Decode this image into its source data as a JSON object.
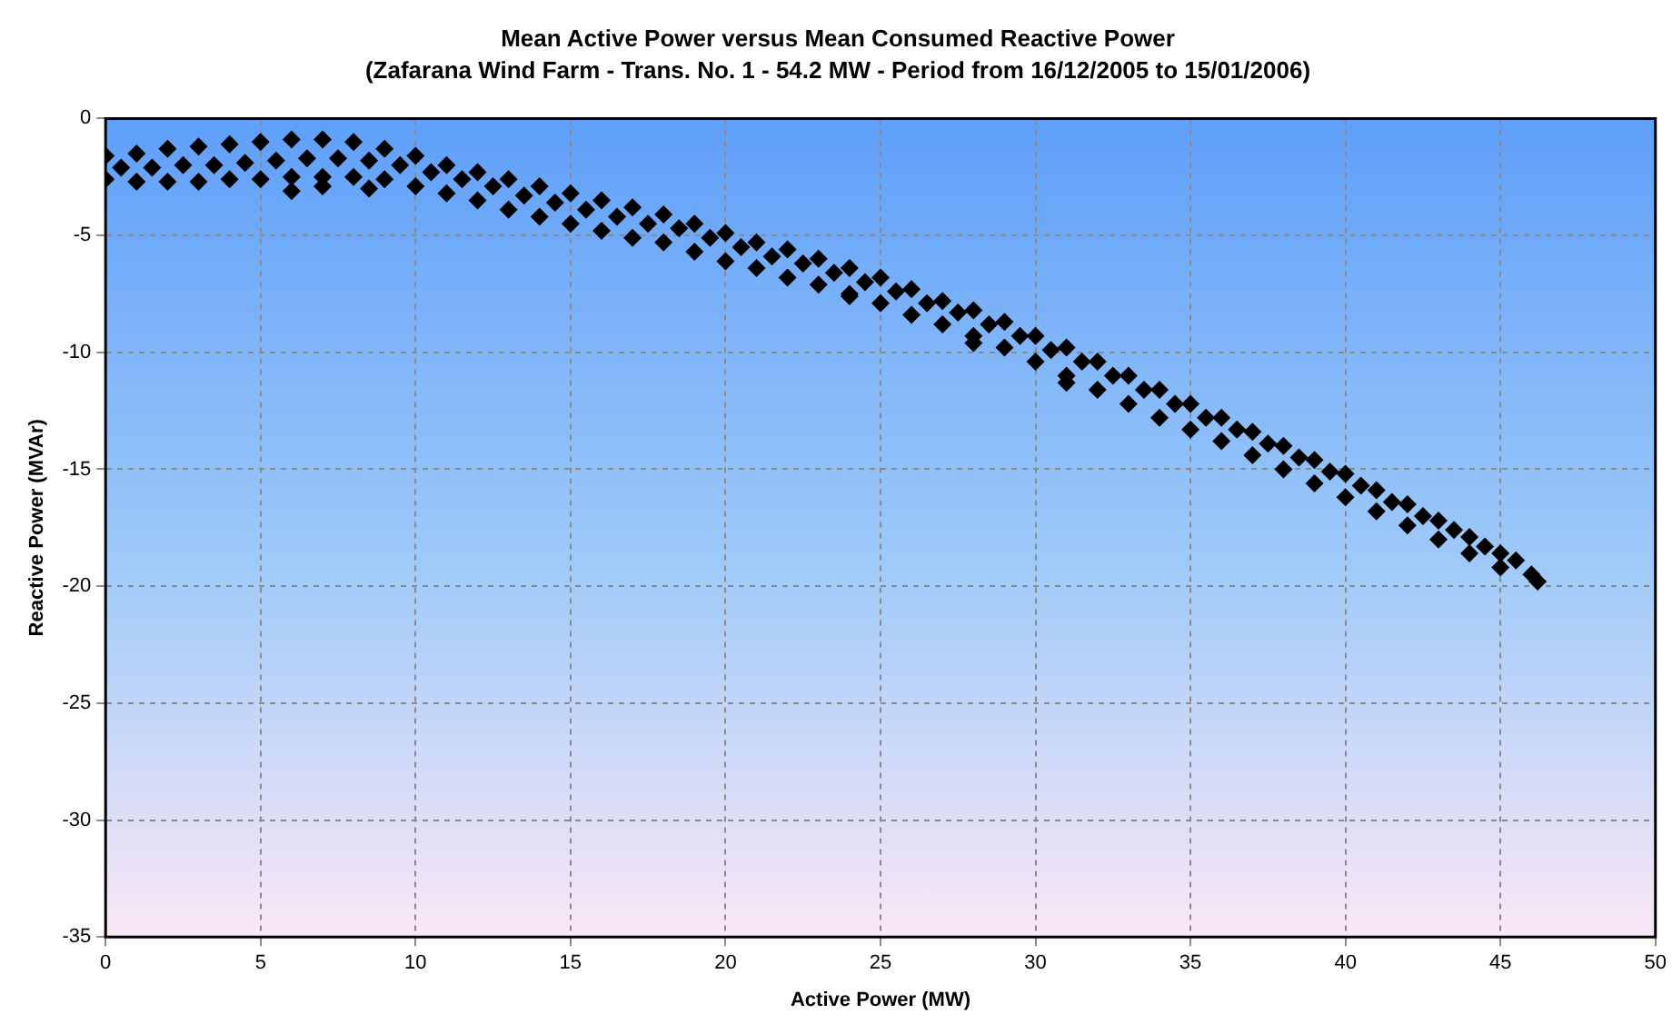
{
  "chart_data": {
    "type": "scatter",
    "title": "Mean Active Power versus Mean Consumed Reactive Power",
    "subtitle": "(Zafarana Wind Farm - Trans. No. 1 - 54.2 MW - Period from 16/12/2005 to 15/01/2006)",
    "xlabel": "Active Power (MW)",
    "ylabel": "Reactive Power (MVAr)",
    "xlim": [
      0,
      50
    ],
    "xticks": [
      0,
      5,
      10,
      15,
      20,
      25,
      30,
      35,
      40,
      45,
      50
    ],
    "ylim": [
      -35,
      0
    ],
    "yticks": [
      -35,
      -30,
      -25,
      -20,
      -15,
      -10,
      -5,
      0
    ],
    "grid": true,
    "legend": false,
    "marker": "diamond",
    "series": [
      {
        "color": "#000000",
        "x": [
          0,
          1,
          2,
          3,
          4,
          5,
          6,
          7,
          8,
          9,
          10,
          11,
          12,
          13,
          14,
          15,
          16,
          17,
          18,
          19,
          20,
          21,
          22,
          23,
          24,
          25,
          26,
          27,
          28,
          29,
          30,
          31,
          32,
          33,
          34,
          35,
          36,
          37,
          38,
          39,
          40,
          41,
          42,
          43,
          44,
          45,
          46,
          0,
          1,
          2,
          3,
          4,
          5,
          6,
          7,
          8,
          9,
          10,
          11,
          12,
          13,
          14,
          15,
          16,
          17,
          18,
          19,
          20,
          21,
          22,
          23,
          24,
          25,
          26,
          27,
          28,
          29,
          30,
          31,
          32,
          33,
          34,
          35,
          36,
          37,
          38,
          39,
          40,
          41,
          42,
          43,
          44,
          45,
          46.2,
          6,
          7,
          8.5,
          24,
          28,
          31,
          0.5,
          1.5,
          2.5,
          3.5,
          4.5,
          5.5,
          6.5,
          7.5,
          8.5,
          9.5,
          10.5,
          11.5,
          12.5,
          13.5,
          14.5,
          15.5,
          16.5,
          17.5,
          18.5,
          19.5,
          20.5,
          21.5,
          22.5,
          23.5,
          24.5,
          25.5,
          26.5,
          27.5,
          28.5,
          29.5,
          30.5,
          31.5,
          32.5,
          33.5,
          34.5,
          35.5,
          36.5,
          37.5,
          38.5,
          39.5,
          40.5,
          41.5,
          42.5,
          43.5,
          44.5,
          45.5
        ],
        "values": [
          -1.6,
          -1.5,
          -1.3,
          -1.2,
          -1.1,
          -1.0,
          -0.9,
          -0.9,
          -1.0,
          -1.3,
          -1.6,
          -2.0,
          -2.3,
          -2.6,
          -2.9,
          -3.2,
          -3.5,
          -3.8,
          -4.1,
          -4.5,
          -4.9,
          -5.3,
          -5.6,
          -6.0,
          -6.4,
          -6.8,
          -7.3,
          -7.8,
          -8.2,
          -8.7,
          -9.3,
          -9.8,
          -10.4,
          -11.0,
          -11.6,
          -12.2,
          -12.8,
          -13.4,
          -14.0,
          -14.6,
          -15.2,
          -15.9,
          -16.5,
          -17.2,
          -17.9,
          -18.6,
          -19.5,
          -2.6,
          -2.7,
          -2.7,
          -2.7,
          -2.6,
          -2.6,
          -2.5,
          -2.5,
          -2.5,
          -2.6,
          -2.9,
          -3.2,
          -3.5,
          -3.9,
          -4.2,
          -4.5,
          -4.8,
          -5.1,
          -5.3,
          -5.7,
          -6.1,
          -6.4,
          -6.8,
          -7.1,
          -7.5,
          -7.9,
          -8.4,
          -8.8,
          -9.3,
          -9.8,
          -10.4,
          -11.0,
          -11.6,
          -12.2,
          -12.8,
          -13.3,
          -13.8,
          -14.4,
          -15.0,
          -15.6,
          -16.2,
          -16.8,
          -17.4,
          -18.0,
          -18.6,
          -19.2,
          -19.8,
          -3.1,
          -2.9,
          -3.0,
          -7.6,
          -9.6,
          -11.3,
          -2.1,
          -2.1,
          -2.0,
          -2.0,
          -1.9,
          -1.8,
          -1.7,
          -1.7,
          -1.8,
          -2.0,
          -2.3,
          -2.6,
          -2.9,
          -3.3,
          -3.6,
          -3.9,
          -4.2,
          -4.5,
          -4.7,
          -5.1,
          -5.5,
          -5.9,
          -6.2,
          -6.6,
          -7.0,
          -7.4,
          -7.9,
          -8.3,
          -8.8,
          -9.3,
          -9.9,
          -10.4,
          -11.0,
          -11.6,
          -12.2,
          -12.8,
          -13.3,
          -13.9,
          -14.5,
          -15.1,
          -15.7,
          -16.4,
          -17.0,
          -17.6,
          -18.3,
          -18.9
        ]
      }
    ]
  }
}
